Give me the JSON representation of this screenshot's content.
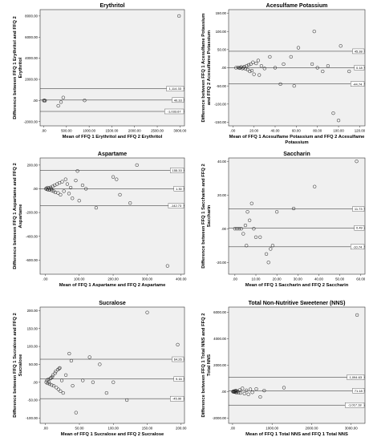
{
  "chart_data": [
    {
      "type": "scatter",
      "title": "Erythritol",
      "xlabel": "Mean of FFQ 1 Erythritol and FFQ 2 Erythritol",
      "ylabel_lines": [
        "Difference between FFQ 1 Erythritol and FFQ 2",
        "Erythritol"
      ],
      "xlim": [
        -80,
        3100
      ],
      "ylim": [
        -2400,
        8600
      ],
      "xticks": [
        {
          "v": 0,
          "label": ".00"
        },
        {
          "v": 500,
          "label": "500.00"
        },
        {
          "v": 1000,
          "label": "1000.00"
        },
        {
          "v": 1500,
          "label": "1500.00"
        },
        {
          "v": 2000,
          "label": "2000.00"
        },
        {
          "v": 2500,
          "label": "2500.00"
        },
        {
          "v": 3000,
          "label": "3000.00"
        }
      ],
      "yticks": [
        {
          "v": -2000,
          "label": "-2000.00"
        },
        {
          "v": 0,
          "label": ".00"
        },
        {
          "v": 2000,
          "label": "2000.00"
        },
        {
          "v": 4000,
          "label": "4000.00"
        },
        {
          "v": 6000,
          "label": "6000.00"
        },
        {
          "v": 8000,
          "label": "8000.00"
        }
      ],
      "refs": [
        {
          "v": 1114.33,
          "label": "1,114.33"
        },
        {
          "v": 40.33,
          "label": "40.33"
        },
        {
          "v": -1033.67,
          "label": "-1,033.67"
        }
      ],
      "points": [
        [
          0,
          -5
        ],
        [
          15,
          10
        ],
        [
          30,
          -15
        ],
        [
          320,
          -500
        ],
        [
          380,
          -150
        ],
        [
          430,
          280
        ],
        [
          900,
          10
        ],
        [
          2980,
          8000
        ]
      ]
    },
    {
      "type": "scatter",
      "title": "Acesulfame Potassium",
      "xlabel_lines": [
        "Mean of FFQ 1 Acesulfame Potassium and FFQ 2 Acesulfame",
        "Potassium"
      ],
      "ylabel_lines": [
        "Difference between FFQ 1 Acesulfame Potassium",
        "and FFQ 2 Acesulfame Potassium"
      ],
      "xlim": [
        -4,
        125
      ],
      "ylim": [
        -160,
        160
      ],
      "xticks": [
        {
          "v": 0,
          "label": ".00"
        },
        {
          "v": 20,
          "label": "20.00"
        },
        {
          "v": 40,
          "label": "40.00"
        },
        {
          "v": 60,
          "label": "60.00"
        },
        {
          "v": 80,
          "label": "80.00"
        },
        {
          "v": 100,
          "label": "100.00"
        },
        {
          "v": 120,
          "label": "120.00"
        }
      ],
      "yticks": [
        {
          "v": -150,
          "label": "-150.00"
        },
        {
          "v": -100,
          "label": "-100.00"
        },
        {
          "v": -50,
          "label": "-50.00"
        },
        {
          "v": 0,
          "label": ".00"
        },
        {
          "v": 50,
          "label": "50.00"
        },
        {
          "v": 100,
          "label": "100.00"
        },
        {
          "v": 150,
          "label": "150.00"
        }
      ],
      "refs": [
        {
          "v": 45.38,
          "label": "45.38"
        },
        {
          "v": 0.18,
          "label": "0.18"
        },
        {
          "v": -44.74,
          "label": "-44.74"
        }
      ],
      "points": [
        [
          3,
          0
        ],
        [
          5,
          1
        ],
        [
          6,
          -1
        ],
        [
          7,
          0
        ],
        [
          8,
          2
        ],
        [
          9,
          -2
        ],
        [
          10,
          0
        ],
        [
          11,
          3
        ],
        [
          12,
          -3
        ],
        [
          13,
          5
        ],
        [
          14,
          -5
        ],
        [
          15,
          8
        ],
        [
          16,
          -10
        ],
        [
          17,
          10
        ],
        [
          18,
          -8
        ],
        [
          19,
          15
        ],
        [
          20,
          -18
        ],
        [
          22,
          12
        ],
        [
          24,
          20
        ],
        [
          25,
          -20
        ],
        [
          27,
          5
        ],
        [
          30,
          -2
        ],
        [
          35,
          30
        ],
        [
          40,
          0
        ],
        [
          45,
          -45
        ],
        [
          48,
          10
        ],
        [
          55,
          30
        ],
        [
          58,
          -50
        ],
        [
          62,
          55
        ],
        [
          75,
          10
        ],
        [
          77,
          100
        ],
        [
          80,
          0
        ],
        [
          85,
          -10
        ],
        [
          90,
          5
        ],
        [
          95,
          -125
        ],
        [
          100,
          -145
        ],
        [
          102,
          60
        ],
        [
          110,
          -10
        ]
      ]
    },
    {
      "type": "scatter",
      "title": "Aspartame",
      "xlabel": "Mean of FFQ 1 Aspartame and FFQ 2 Aspartame",
      "ylabel_lines": [
        "Difference between FFQ 1 Aspartame and FFQ 2",
        "Aspartame"
      ],
      "xlim": [
        -15,
        410
      ],
      "ylim": [
        -720,
        260
      ],
      "xticks": [
        {
          "v": 0,
          "label": ".00"
        },
        {
          "v": 100,
          "label": "100.00"
        },
        {
          "v": 200,
          "label": "200.00"
        },
        {
          "v": 300,
          "label": "300.00"
        },
        {
          "v": 400,
          "label": "400.00"
        }
      ],
      "yticks": [
        {
          "v": -600,
          "label": "-600.00"
        },
        {
          "v": -400,
          "label": "-400.00"
        },
        {
          "v": -200,
          "label": "-200.00"
        },
        {
          "v": 0,
          "label": ".00"
        },
        {
          "v": 200,
          "label": "200.00"
        }
      ],
      "refs": [
        {
          "v": 155.33,
          "label": "155.33"
        },
        {
          "v": 1.3,
          "label": "1.30"
        },
        {
          "v": -142.73,
          "label": "-142.73"
        }
      ],
      "points": [
        [
          2,
          0
        ],
        [
          4,
          5
        ],
        [
          6,
          -5
        ],
        [
          8,
          10
        ],
        [
          10,
          -10
        ],
        [
          12,
          5
        ],
        [
          14,
          -8
        ],
        [
          16,
          12
        ],
        [
          18,
          0
        ],
        [
          20,
          -15
        ],
        [
          22,
          20
        ],
        [
          25,
          -20
        ],
        [
          28,
          30
        ],
        [
          30,
          -30
        ],
        [
          35,
          40
        ],
        [
          38,
          -35
        ],
        [
          42,
          50
        ],
        [
          45,
          -50
        ],
        [
          50,
          60
        ],
        [
          55,
          -20
        ],
        [
          60,
          80
        ],
        [
          65,
          40
        ],
        [
          70,
          -40
        ],
        [
          75,
          10
        ],
        [
          80,
          -80
        ],
        [
          90,
          70
        ],
        [
          95,
          150
        ],
        [
          100,
          -100
        ],
        [
          110,
          30
        ],
        [
          120,
          0
        ],
        [
          150,
          -160
        ],
        [
          200,
          100
        ],
        [
          210,
          80
        ],
        [
          220,
          -50
        ],
        [
          250,
          -120
        ],
        [
          270,
          200
        ],
        [
          360,
          -650
        ]
      ]
    },
    {
      "type": "scatter",
      "title": "Saccharin",
      "xlabel": "Mean of FFQ 1 Saccharin and FFQ 2 Saccharin",
      "ylabel_lines": [
        "Difference between FFQ 1 Saccharin and FFQ 2",
        "Saccharin"
      ],
      "xlim": [
        -3,
        62
      ],
      "ylim": [
        -27,
        42
      ],
      "xticks": [
        {
          "v": 0,
          "label": ".00"
        },
        {
          "v": 10,
          "label": "10.00"
        },
        {
          "v": 20,
          "label": "20.00"
        },
        {
          "v": 30,
          "label": "30.00"
        },
        {
          "v": 40,
          "label": "40.00"
        },
        {
          "v": 50,
          "label": "50.00"
        },
        {
          "v": 60,
          "label": "60.00"
        }
      ],
      "yticks": [
        {
          "v": -20,
          "label": "-20.00"
        },
        {
          "v": 0,
          "label": ".00"
        },
        {
          "v": 20,
          "label": "20.00"
        },
        {
          "v": 40,
          "label": "40.00"
        }
      ],
      "refs": [
        {
          "v": 11.73,
          "label": "11.73"
        },
        {
          "v": 0.49,
          "label": "0.49"
        },
        {
          "v": -10.74,
          "label": "-10.74"
        }
      ],
      "points": [
        [
          0,
          0
        ],
        [
          1,
          0
        ],
        [
          2,
          0
        ],
        [
          3,
          0
        ],
        [
          4,
          -3
        ],
        [
          5,
          2
        ],
        [
          5.5,
          -10
        ],
        [
          6,
          10
        ],
        [
          7,
          5
        ],
        [
          8,
          15
        ],
        [
          9,
          0
        ],
        [
          10,
          -5
        ],
        [
          12,
          -5
        ],
        [
          15,
          -15
        ],
        [
          16,
          -20
        ],
        [
          17,
          -12
        ],
        [
          18,
          -10
        ],
        [
          20,
          10
        ],
        [
          28,
          12
        ],
        [
          38,
          25
        ],
        [
          58,
          40
        ]
      ]
    },
    {
      "type": "scatter",
      "title": "Sucralose",
      "xlabel": "Mean of FFQ 1 Sucralose and FFQ 2 Sucralose",
      "ylabel_lines": [
        "Difference between FFQ 1 Sucralose and FFQ 2",
        "Sucralose"
      ],
      "xlim": [
        -8,
        205
      ],
      "ylim": [
        -115,
        210
      ],
      "xticks": [
        {
          "v": 0,
          "label": ".00"
        },
        {
          "v": 50,
          "label": "50.00"
        },
        {
          "v": 100,
          "label": "100.00"
        },
        {
          "v": 150,
          "label": "150.00"
        },
        {
          "v": 200,
          "label": "200.00"
        }
      ],
      "yticks": [
        {
          "v": -100,
          "label": "-100.00"
        },
        {
          "v": -50,
          "label": "-50.00"
        },
        {
          "v": 0,
          "label": ".00"
        },
        {
          "v": 50,
          "label": "50.00"
        },
        {
          "v": 100,
          "label": "100.00"
        },
        {
          "v": 150,
          "label": "150.00"
        },
        {
          "v": 200,
          "label": "200.00"
        }
      ],
      "refs": [
        {
          "v": 64.26,
          "label": "64.26"
        },
        {
          "v": 9.16,
          "label": "9.16"
        },
        {
          "v": -45.9,
          "label": "-45.90"
        }
      ],
      "points": [
        [
          1,
          0
        ],
        [
          2,
          5
        ],
        [
          3,
          -3
        ],
        [
          4,
          8
        ],
        [
          5,
          0
        ],
        [
          6,
          -5
        ],
        [
          7,
          10
        ],
        [
          8,
          12
        ],
        [
          9,
          -8
        ],
        [
          10,
          15
        ],
        [
          11,
          20
        ],
        [
          12,
          -10
        ],
        [
          14,
          25
        ],
        [
          15,
          30
        ],
        [
          16,
          -15
        ],
        [
          18,
          35
        ],
        [
          19,
          -20
        ],
        [
          20,
          38
        ],
        [
          21,
          40
        ],
        [
          22,
          -25
        ],
        [
          24,
          5
        ],
        [
          26,
          -30
        ],
        [
          30,
          20
        ],
        [
          35,
          80
        ],
        [
          38,
          60
        ],
        [
          40,
          -10
        ],
        [
          45,
          -85
        ],
        [
          55,
          5
        ],
        [
          65,
          70
        ],
        [
          70,
          0
        ],
        [
          80,
          50
        ],
        [
          90,
          -30
        ],
        [
          100,
          0
        ],
        [
          120,
          -50
        ],
        [
          150,
          195
        ],
        [
          195,
          105
        ]
      ]
    },
    {
      "type": "scatter",
      "title": "Total Non-Nutritive Sweetener (NNS)",
      "xlabel": "Mean of FFQ 1 Total NNS and FFQ 1 Total NNS",
      "ylabel_lines": [
        "Difference between FFQ 1 Total NNS and FFQ 2",
        "Total NNS"
      ],
      "xlim": [
        -100,
        3350
      ],
      "ylim": [
        -2400,
        6400
      ],
      "xticks": [
        {
          "v": 0,
          "label": ".00"
        },
        {
          "v": 1000,
          "label": "1000.00"
        },
        {
          "v": 2000,
          "label": "2000.00"
        },
        {
          "v": 3000,
          "label": "3000.00"
        }
      ],
      "yticks": [
        {
          "v": -2000,
          "label": "-2000.00"
        },
        {
          "v": 0,
          "label": ".00"
        },
        {
          "v": 2000,
          "label": "2000.00"
        },
        {
          "v": 4000,
          "label": "4000.00"
        },
        {
          "v": 6000,
          "label": "6000.00"
        }
      ],
      "refs": [
        {
          "v": 1094.63,
          "label": "1,094.63"
        },
        {
          "v": 71.18,
          "label": "71.18"
        },
        {
          "v": -1017.18,
          "label": "-1,017.18"
        }
      ],
      "points": [
        [
          10,
          0
        ],
        [
          20,
          20
        ],
        [
          30,
          -20
        ],
        [
          40,
          40
        ],
        [
          50,
          -30
        ],
        [
          60,
          10
        ],
        [
          70,
          60
        ],
        [
          80,
          -50
        ],
        [
          90,
          80
        ],
        [
          100,
          -60
        ],
        [
          120,
          30
        ],
        [
          150,
          -80
        ],
        [
          180,
          120
        ],
        [
          200,
          -100
        ],
        [
          250,
          250
        ],
        [
          300,
          -150
        ],
        [
          350,
          100
        ],
        [
          400,
          -200
        ],
        [
          450,
          180
        ],
        [
          500,
          -50
        ],
        [
          600,
          200
        ],
        [
          700,
          -400
        ],
        [
          800,
          80
        ],
        [
          1300,
          300
        ],
        [
          3150,
          5800
        ]
      ]
    }
  ]
}
